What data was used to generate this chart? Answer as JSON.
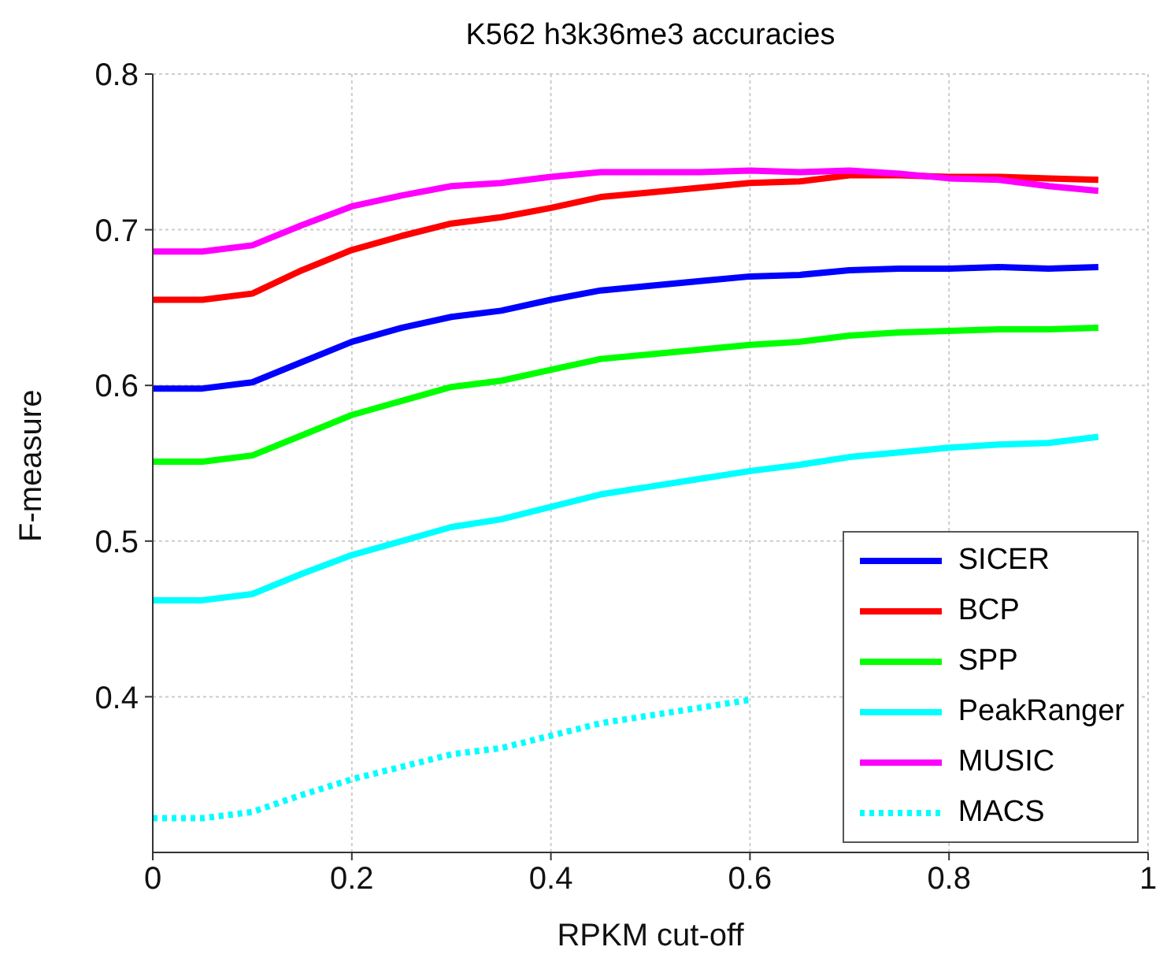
{
  "chart_data": {
    "type": "line",
    "title": "K562 h3k36me3 accuracies",
    "xlabel": "RPKM cut-off",
    "ylabel": "F-measure",
    "x": [
      0,
      0.05,
      0.1,
      0.15,
      0.2,
      0.25,
      0.3,
      0.35,
      0.4,
      0.45,
      0.5,
      0.55,
      0.6,
      0.65,
      0.7,
      0.75,
      0.8,
      0.85,
      0.9,
      0.95
    ],
    "series": [
      {
        "name": "SICER",
        "color": "#0000ff",
        "values": [
          0.598,
          0.598,
          0.602,
          0.615,
          0.628,
          0.637,
          0.644,
          0.648,
          0.655,
          0.661,
          0.664,
          0.667,
          0.67,
          0.671,
          0.674,
          0.675,
          0.675,
          0.676,
          0.675,
          0.676
        ]
      },
      {
        "name": "BCP",
        "color": "#ff0000",
        "values": [
          0.655,
          0.655,
          0.659,
          0.674,
          0.687,
          0.696,
          0.704,
          0.708,
          0.714,
          0.721,
          0.724,
          0.727,
          0.73,
          0.731,
          0.735,
          0.735,
          0.734,
          0.734,
          0.733,
          0.732
        ]
      },
      {
        "name": "SPP",
        "color": "#00ff00",
        "values": [
          0.551,
          0.551,
          0.555,
          0.568,
          0.581,
          0.59,
          0.599,
          0.603,
          0.61,
          0.617,
          0.62,
          0.623,
          0.626,
          0.628,
          0.632,
          0.634,
          0.635,
          0.636,
          0.636,
          0.637
        ]
      },
      {
        "name": "PeakRanger",
        "color": "#00ffff",
        "values": [
          0.462,
          0.462,
          0.466,
          0.479,
          0.491,
          0.5,
          0.509,
          0.514,
          0.522,
          0.53,
          0.535,
          0.54,
          0.545,
          0.549,
          0.554,
          0.557,
          0.56,
          0.562,
          0.563,
          0.567
        ]
      },
      {
        "name": "MUSIC",
        "color": "#ff00ff",
        "values": [
          0.686,
          0.686,
          0.69,
          0.703,
          0.715,
          0.722,
          0.728,
          0.73,
          0.734,
          0.737,
          0.737,
          0.737,
          0.738,
          0.737,
          0.738,
          0.736,
          0.733,
          0.732,
          0.728,
          0.725
        ]
      },
      {
        "name": "MACS",
        "color": "#00ffff",
        "line_style": "dotted",
        "values": [
          0.322,
          0.322,
          0.326,
          0.337,
          0.347,
          0.355,
          0.363,
          0.367,
          0.375,
          0.383,
          0.388,
          0.393,
          0.398,
          null,
          null,
          null,
          null,
          null,
          null,
          null
        ]
      }
    ],
    "xlim": [
      0,
      1
    ],
    "xticks": [
      0,
      0.2,
      0.4,
      0.6,
      0.8,
      1
    ],
    "ylim": [
      0.3,
      0.8
    ],
    "yticks": [
      0.4,
      0.5,
      0.6,
      0.7,
      0.8
    ],
    "grid": true,
    "legend": "bottom right",
    "line_style": "solid",
    "marker": "none"
  }
}
